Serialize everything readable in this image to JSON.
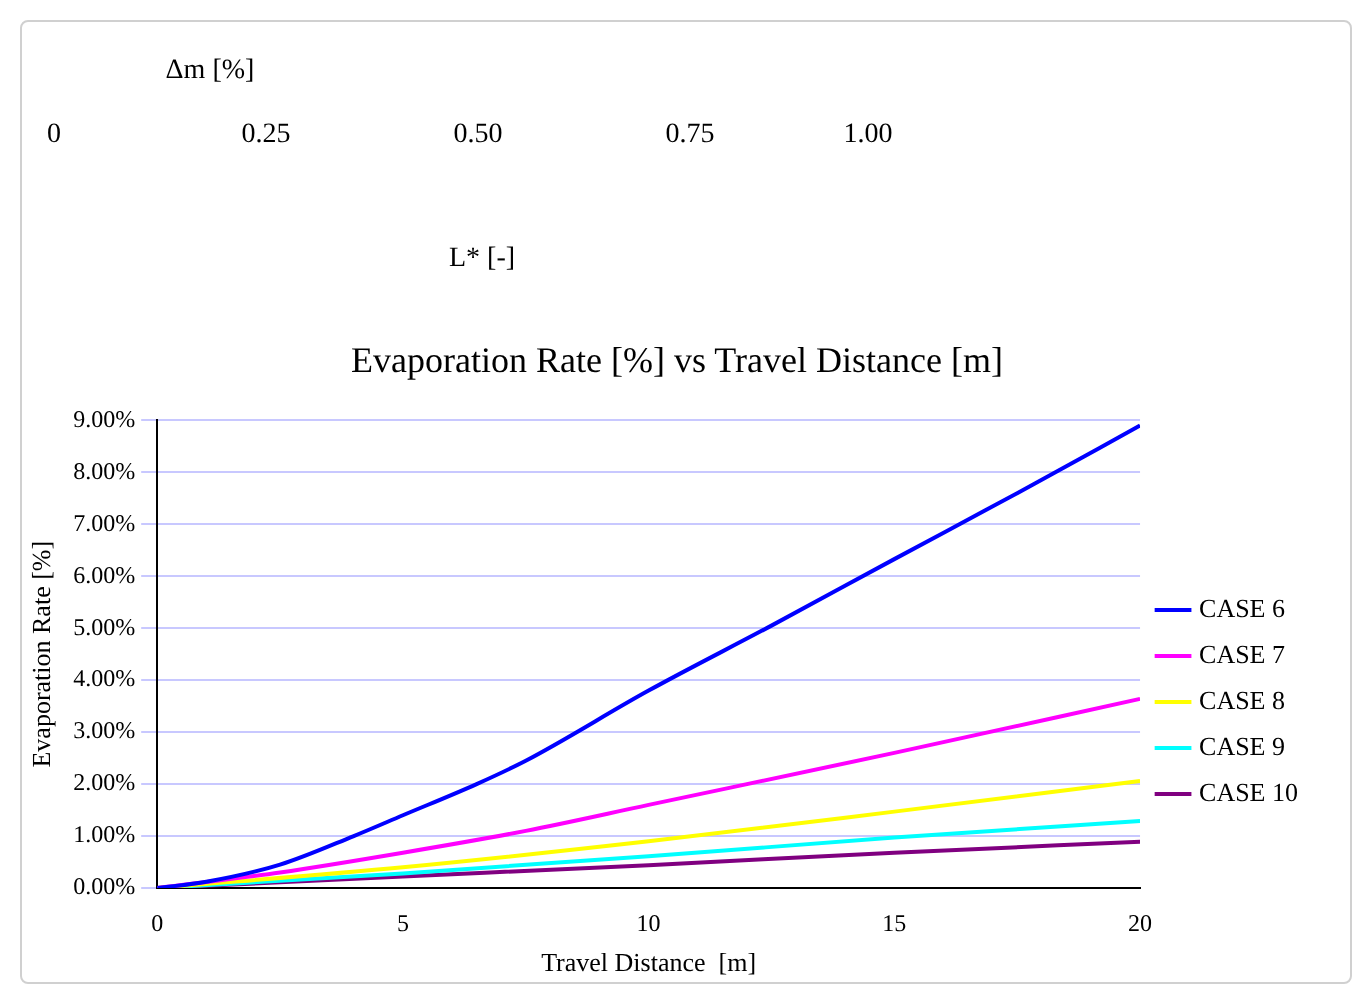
{
  "chart_data": {
    "type": "line",
    "title": "Evaporation Rate [%] vs Travel Distance [m]",
    "xlabel": "Travel Distance  [m]",
    "ylabel": "Evaporation Rate [%]",
    "annotations": [
      "Δm [%]",
      "0",
      "0.25",
      "0.50",
      "0.75",
      "1.00",
      "L* [-]"
    ],
    "xlim": [
      0,
      20
    ],
    "xticks": [
      0,
      5,
      10,
      15,
      20
    ],
    "ylim": [
      0,
      9
    ],
    "yticks": [
      {
        "value": 0,
        "label": "0.00%"
      },
      {
        "value": 1,
        "label": "1.00%"
      },
      {
        "value": 2,
        "label": "2.00%"
      },
      {
        "value": 3,
        "label": "3.00%"
      },
      {
        "value": 4,
        "label": "4.00%"
      },
      {
        "value": 5,
        "label": "5.00%"
      },
      {
        "value": 6,
        "label": "6.00%"
      },
      {
        "value": 7,
        "label": "7.00%"
      },
      {
        "value": 8,
        "label": "8.00%"
      },
      {
        "value": 9,
        "label": "9.00%"
      }
    ],
    "grid": "y",
    "legend": "right",
    "marker": "none",
    "line_style": "solid",
    "series": [
      {
        "name": "CASE 6",
        "color": "#0000ff",
        "x": [
          0,
          1,
          2.5,
          4,
          5,
          6.5,
          7.5,
          10,
          12.5,
          15,
          17.5,
          20
        ],
        "values": [
          0,
          0.12,
          0.45,
          1.0,
          1.4,
          2.0,
          2.45,
          3.8,
          5.05,
          6.33,
          7.6,
          8.9
        ]
      },
      {
        "name": "CASE 7",
        "color": "#ff00ff",
        "x": [
          0,
          2.5,
          5,
          7.5,
          10,
          15,
          20
        ],
        "values": [
          0,
          0.3,
          0.68,
          1.1,
          1.6,
          2.6,
          3.64
        ]
      },
      {
        "name": "CASE 8",
        "color": "#ffff00",
        "x": [
          0,
          5,
          10,
          15,
          20
        ],
        "values": [
          0,
          0.4,
          0.9,
          1.47,
          2.06
        ]
      },
      {
        "name": "CASE 9",
        "color": "#00ffff",
        "x": [
          0,
          5,
          10,
          15,
          20
        ],
        "values": [
          0,
          0.28,
          0.61,
          0.97,
          1.29
        ]
      },
      {
        "name": "CASE 10",
        "color": "#800080",
        "x": [
          0,
          5,
          10,
          15,
          20
        ],
        "values": [
          0,
          0.22,
          0.44,
          0.68,
          0.89
        ]
      }
    ]
  }
}
